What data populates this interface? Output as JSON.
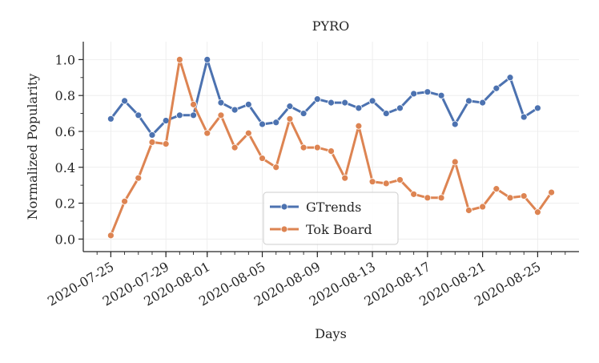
{
  "chart_data": {
    "type": "line",
    "title": "PYRO",
    "xlabel": "Days",
    "ylabel": "Normalized Popularity",
    "ylim": [
      -0.07,
      1.1
    ],
    "yticks": [
      0.0,
      0.2,
      0.4,
      0.6,
      0.8,
      1.0
    ],
    "ytick_labels": [
      "0.0",
      "0.2",
      "0.4",
      "0.6",
      "0.8",
      "1.0"
    ],
    "x_major_ticks": [
      "2020-07-25",
      "2020-07-29",
      "2020-08-01",
      "2020-08-05",
      "2020-08-09",
      "2020-08-13",
      "2020-08-17",
      "2020-08-21",
      "2020-08-25"
    ],
    "x_range": [
      "2020-07-23",
      "2020-08-28"
    ],
    "grid": true,
    "legend_position": "bottom-center",
    "series": [
      {
        "name": "GTrends",
        "color": "#4c72b0",
        "x": [
          "2020-07-25",
          "2020-07-26",
          "2020-07-27",
          "2020-07-28",
          "2020-07-29",
          "2020-07-30",
          "2020-07-31",
          "2020-08-01",
          "2020-08-02",
          "2020-08-03",
          "2020-08-04",
          "2020-08-05",
          "2020-08-06",
          "2020-08-07",
          "2020-08-08",
          "2020-08-09",
          "2020-08-10",
          "2020-08-11",
          "2020-08-12",
          "2020-08-13",
          "2020-08-14",
          "2020-08-15",
          "2020-08-16",
          "2020-08-17",
          "2020-08-18",
          "2020-08-19",
          "2020-08-20",
          "2020-08-21",
          "2020-08-22",
          "2020-08-23",
          "2020-08-24",
          "2020-08-25"
        ],
        "values": [
          0.67,
          0.77,
          0.69,
          0.58,
          0.66,
          0.69,
          0.69,
          1.0,
          0.76,
          0.72,
          0.75,
          0.64,
          0.65,
          0.74,
          0.7,
          0.78,
          0.76,
          0.76,
          0.73,
          0.77,
          0.7,
          0.73,
          0.81,
          0.82,
          0.8,
          0.64,
          0.77,
          0.76,
          0.84,
          0.9,
          0.68,
          0.73
        ]
      },
      {
        "name": "Tok Board",
        "color": "#dd8452",
        "x": [
          "2020-07-25",
          "2020-07-26",
          "2020-07-27",
          "2020-07-28",
          "2020-07-29",
          "2020-07-30",
          "2020-07-31",
          "2020-08-01",
          "2020-08-02",
          "2020-08-03",
          "2020-08-04",
          "2020-08-05",
          "2020-08-06",
          "2020-08-07",
          "2020-08-08",
          "2020-08-09",
          "2020-08-10",
          "2020-08-11",
          "2020-08-12",
          "2020-08-13",
          "2020-08-14",
          "2020-08-15",
          "2020-08-16",
          "2020-08-17",
          "2020-08-18",
          "2020-08-19",
          "2020-08-20",
          "2020-08-21",
          "2020-08-22",
          "2020-08-23",
          "2020-08-24",
          "2020-08-25",
          "2020-08-26"
        ],
        "values": [
          0.02,
          0.21,
          0.34,
          0.54,
          0.53,
          1.0,
          0.75,
          0.59,
          0.69,
          0.51,
          0.59,
          0.45,
          0.4,
          0.67,
          0.51,
          0.51,
          0.49,
          0.34,
          0.63,
          0.32,
          0.31,
          0.33,
          0.25,
          0.23,
          0.23,
          0.43,
          0.16,
          0.18,
          0.28,
          0.23,
          0.24,
          0.15,
          0.26
        ]
      }
    ]
  }
}
